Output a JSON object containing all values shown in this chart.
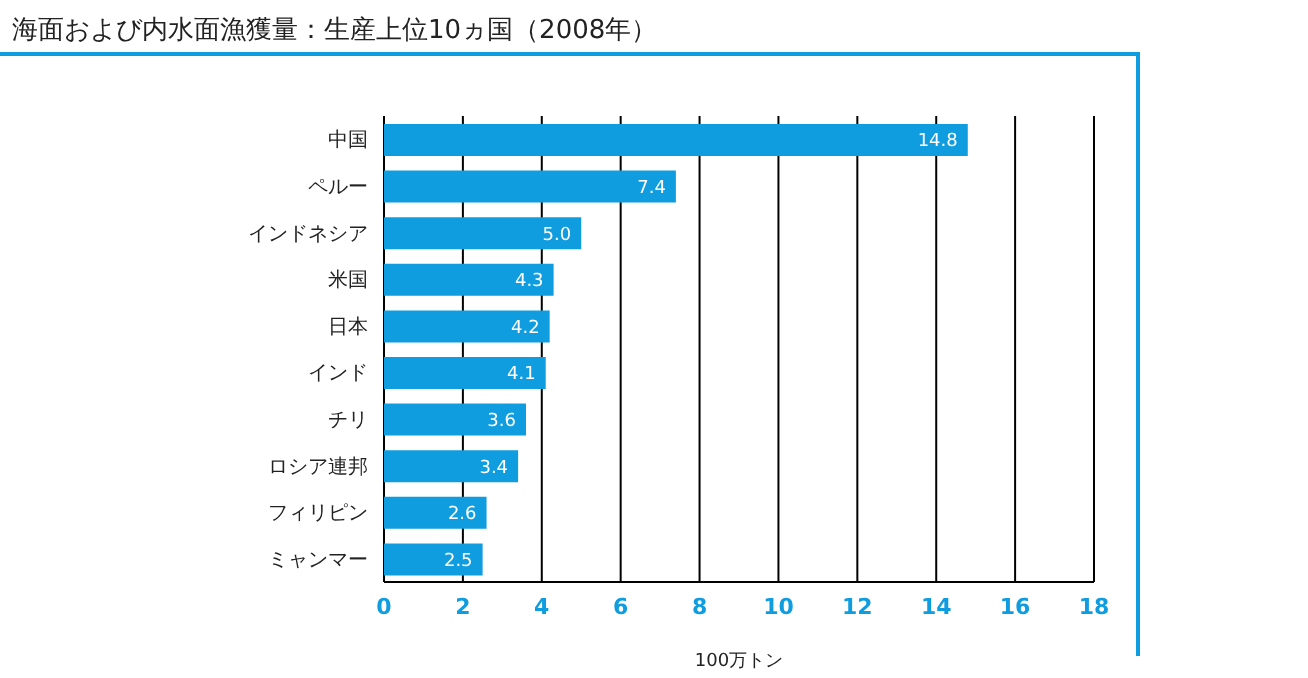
{
  "chart_data": {
    "type": "bar",
    "orientation": "horizontal",
    "title": "海面および内水面漁獲量：生産上位10ヵ国（2008年）",
    "xlabel": "100万トン",
    "categories": [
      "中国",
      "ペルー",
      "インドネシア",
      "米国",
      "日本",
      "インド",
      "チリ",
      "ロシア連邦",
      "フィリピン",
      "ミャンマー"
    ],
    "values": [
      14.8,
      7.4,
      5.0,
      4.3,
      4.2,
      4.1,
      3.6,
      3.4,
      2.6,
      2.5
    ],
    "value_labels": [
      "14.8",
      "7.4",
      "5.0",
      "4.3",
      "4.2",
      "4.1",
      "3.6",
      "3.4",
      "2.6",
      "2.5"
    ],
    "color": "#109de0",
    "xlim": [
      0,
      18
    ],
    "xticks": [
      0,
      2,
      4,
      6,
      8,
      10,
      12,
      14,
      16,
      18
    ],
    "grid": "x",
    "legend": false
  }
}
